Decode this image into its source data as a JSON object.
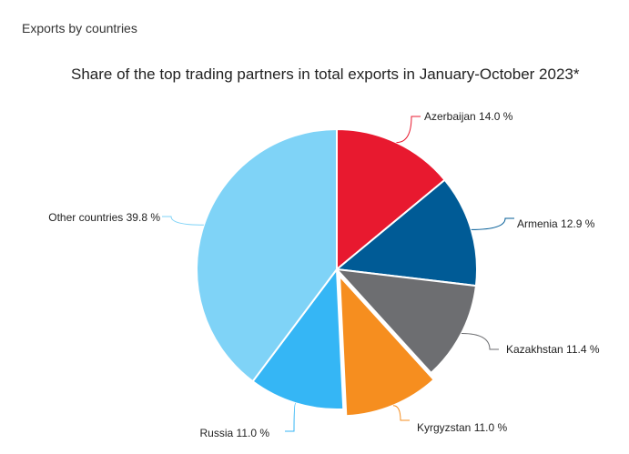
{
  "header": {
    "section_label": "Exports by countries"
  },
  "chart_data": {
    "type": "pie",
    "title": "Share of the top trading partners in total exports in January-October 2023*",
    "unit": "%",
    "slices": [
      {
        "label": "Azerbaijan",
        "value": 14.0,
        "display": "Azerbaijan 14.0 %",
        "color": "#e8192f"
      },
      {
        "label": "Armenia",
        "value": 12.9,
        "display": "Armenia 12.9 %",
        "color": "#005b96"
      },
      {
        "label": "Kazakhstan",
        "value": 11.4,
        "display": "Kazakhstan 11.4 %",
        "color": "#6d6e71"
      },
      {
        "label": "Kyrgyzstan",
        "value": 11.0,
        "display": "Kyrgyzstan 11.0 %",
        "color": "#f68e1f",
        "exploded": true
      },
      {
        "label": "Russia",
        "value": 11.0,
        "display": "Russia 11.0 %",
        "color": "#35b6f5"
      },
      {
        "label": "Other countries",
        "value": 39.8,
        "display": "Other countries 39.8 %",
        "color": "#7fd3f7"
      }
    ]
  }
}
